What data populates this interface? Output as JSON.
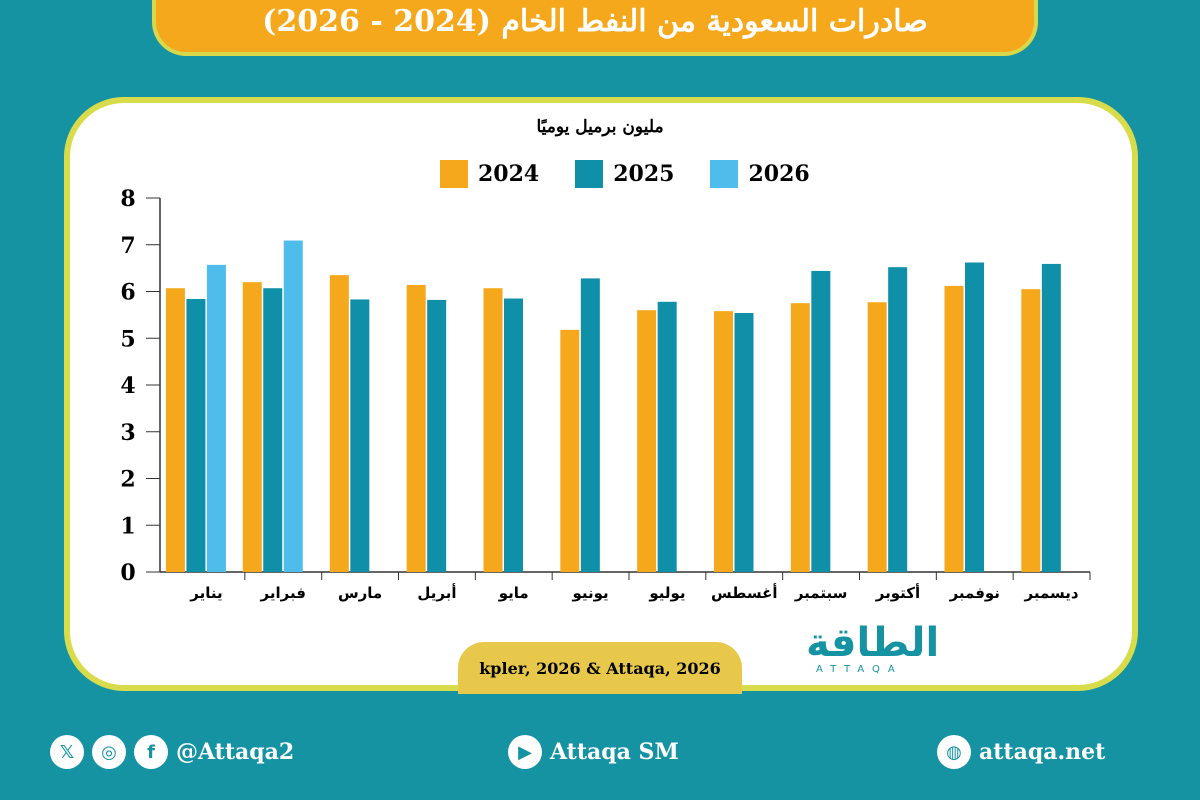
{
  "title": "صادرات السعودية من النفط الخام (2024 - 2026)",
  "source": "kpler, 2026 & Attaqa, 2026",
  "logo": {
    "ar": "الطاقة",
    "en": "ATTAQA"
  },
  "footer": {
    "social_handle": "@Attaqa2",
    "youtube": "Attaqa SM",
    "website": "attaqa.net",
    "icons": [
      "x-icon",
      "instagram-icon",
      "facebook-icon",
      "youtube-icon",
      "globe-icon"
    ]
  },
  "chart_data": {
    "type": "bar",
    "title": "",
    "ylabel": "مليون برميل يوميًا",
    "ylim": [
      0,
      8
    ],
    "yticks": [
      0,
      1,
      2,
      3,
      4,
      5,
      6,
      7,
      8
    ],
    "grid": false,
    "legend_placement": "top",
    "categories": [
      "يناير",
      "فبراير",
      "مارس",
      "أبريل",
      "مايو",
      "يونيو",
      "يوليو",
      "أغسطس",
      "سبتمبر",
      "أكتوبر",
      "نوفمبر",
      "ديسمبر"
    ],
    "series": [
      {
        "name": "2024",
        "color": "#f5a81c",
        "values": [
          6.07,
          6.2,
          6.35,
          6.14,
          6.07,
          5.18,
          5.6,
          5.58,
          5.75,
          5.77,
          6.12,
          6.05
        ]
      },
      {
        "name": "2025",
        "color": "#0f8fa8",
        "values": [
          5.84,
          6.07,
          5.83,
          5.82,
          5.85,
          6.28,
          5.78,
          5.54,
          6.44,
          6.52,
          6.62,
          6.59
        ]
      },
      {
        "name": "2026",
        "color": "#4fbdec",
        "values": [
          6.57,
          7.09,
          null,
          null,
          null,
          null,
          null,
          null,
          null,
          null,
          null,
          null
        ]
      }
    ]
  }
}
